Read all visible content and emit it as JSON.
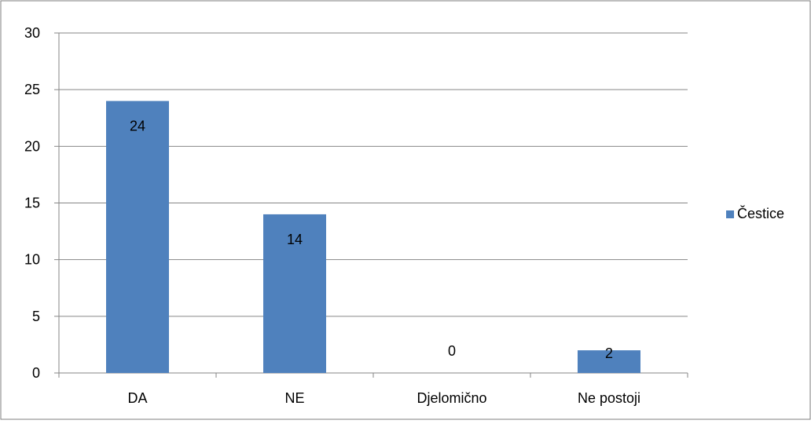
{
  "chart_data": {
    "type": "bar",
    "categories": [
      "DA",
      "NE",
      "Djelomično",
      "Ne postoji"
    ],
    "series": [
      {
        "name": "Čestice",
        "values": [
          24,
          14,
          0,
          2
        ],
        "color": "#4F81BD"
      }
    ],
    "data_labels": [
      "24",
      "14",
      "0",
      "2"
    ],
    "y_ticks": [
      "0",
      "5",
      "10",
      "15",
      "20",
      "25",
      "30"
    ],
    "ylim": [
      0,
      30
    ],
    "y_step": 5,
    "grid": true,
    "legend_position": "right",
    "title": "",
    "xlabel": "",
    "ylabel": ""
  }
}
